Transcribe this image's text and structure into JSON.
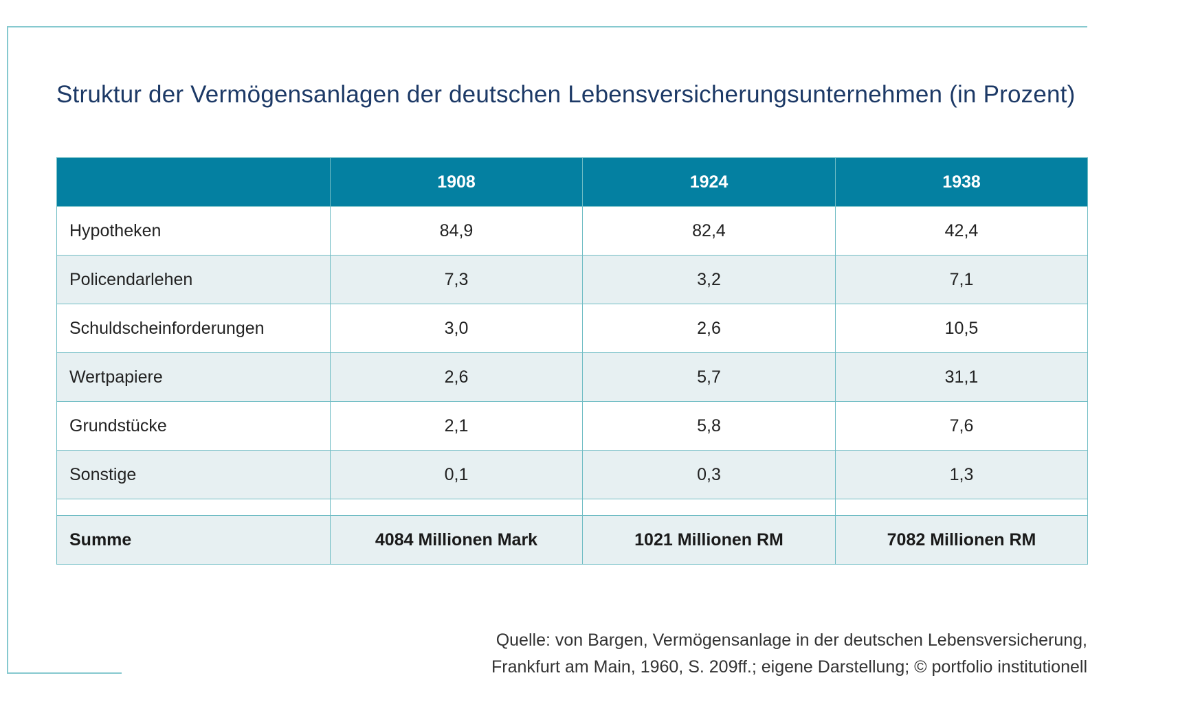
{
  "title": "Struktur der Vermögensanlagen der deutschen Lebensversicherungsunternehmen (in Prozent)",
  "colors": {
    "header_bg": "#0480a1",
    "row_alt_bg": "#e7f0f2",
    "border": "#6fbcc4",
    "title_text": "#1c3966",
    "frame": "#86c9cf"
  },
  "chart_data": {
    "type": "table",
    "title": "Struktur der Vermögensanlagen der deutschen Lebensversicherungsunternehmen (in Prozent)",
    "columns": [
      "",
      "1908",
      "1924",
      "1938"
    ],
    "rows": [
      {
        "label": "Hypotheken",
        "values": [
          "84,9",
          "82,4",
          "42,4"
        ]
      },
      {
        "label": "Policendarlehen",
        "values": [
          "7,3",
          "3,2",
          "7,1"
        ]
      },
      {
        "label": "Schuldscheinforderungen",
        "values": [
          "3,0",
          "2,6",
          "10,5"
        ]
      },
      {
        "label": "Wertpapiere",
        "values": [
          "2,6",
          "5,7",
          "31,1"
        ]
      },
      {
        "label": "Grundstücke",
        "values": [
          "2,1",
          "5,8",
          "7,6"
        ]
      },
      {
        "label": "Sonstige",
        "values": [
          "0,1",
          "0,3",
          "1,3"
        ]
      }
    ],
    "total": {
      "label": "Summe",
      "values": [
        "4084 Millionen Mark",
        "1021 Millionen RM",
        "7082 Millionen RM"
      ]
    }
  },
  "source": {
    "line1": "Quelle: von Bargen, Vermögensanlage in der deutschen Lebensversicherung,",
    "line2": "Frankfurt am Main, 1960, S. 209ff.; eigene Darstellung; © portfolio institutionell"
  }
}
